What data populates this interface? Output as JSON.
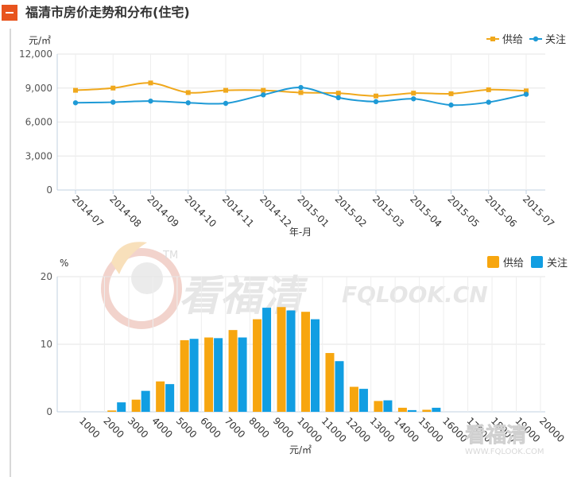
{
  "header": {
    "title": "福清市房价走势和分布(住宅)"
  },
  "chart_data": [
    {
      "type": "line",
      "ylabel": "元/㎡",
      "xlabel": "年-月",
      "ylim": [
        0,
        12000
      ],
      "yticks": [
        0,
        3000,
        6000,
        9000,
        12000
      ],
      "ytick_labels": [
        "0",
        "3,000",
        "6,000",
        "9,000",
        "12,000"
      ],
      "categories": [
        "2014-07",
        "2014-08",
        "2014-09",
        "2014-10",
        "2014-11",
        "2014-12",
        "2015-01",
        "2015-02",
        "2015-03",
        "2015-04",
        "2015-05",
        "2015-06",
        "2015-07"
      ],
      "legend_position": "top-right",
      "series": [
        {
          "name": "供给",
          "color": "#f0a81c",
          "values": [
            8800,
            9000,
            9450,
            8600,
            8800,
            8800,
            8600,
            8550,
            8300,
            8550,
            8500,
            8850,
            8750
          ]
        },
        {
          "name": "关注",
          "color": "#1e9ad6",
          "values": [
            7700,
            7750,
            7850,
            7700,
            7650,
            8400,
            9050,
            8150,
            7800,
            8050,
            7500,
            7750,
            8450
          ]
        }
      ]
    },
    {
      "type": "bar",
      "ylabel": "%",
      "xlabel": "元/㎡",
      "ylim": [
        0,
        20
      ],
      "yticks": [
        0,
        10,
        20
      ],
      "ytick_labels": [
        "0",
        "10",
        "20"
      ],
      "categories": [
        "1000",
        "2000",
        "3000",
        "4000",
        "5000",
        "6000",
        "7000",
        "8000",
        "9000",
        "10000",
        "11000",
        "12000",
        "13000",
        "14000",
        "15000",
        "16000",
        "17000",
        "18000",
        "19000",
        "20000"
      ],
      "legend_position": "top-right",
      "series": [
        {
          "name": "供给",
          "color": "#f7a60f",
          "values": [
            0,
            0.2,
            1.8,
            4.5,
            10.6,
            11.0,
            12.1,
            13.7,
            15.5,
            14.8,
            8.7,
            3.7,
            1.6,
            0.6,
            0.3,
            0,
            0,
            0,
            0,
            0
          ]
        },
        {
          "name": "关注",
          "color": "#119ee2",
          "values": [
            0,
            1.4,
            3.1,
            4.1,
            10.8,
            10.9,
            11.0,
            15.4,
            15.0,
            13.7,
            7.5,
            3.4,
            1.7,
            0.25,
            0.6,
            0,
            0,
            0,
            0,
            0
          ]
        }
      ]
    }
  ],
  "watermark": {
    "text1": "看福清",
    "text2": "FQLOOK.CN",
    "tm": "TM",
    "small_text": "看福清",
    "small_url": "WWW.FQLOOK.COM"
  }
}
